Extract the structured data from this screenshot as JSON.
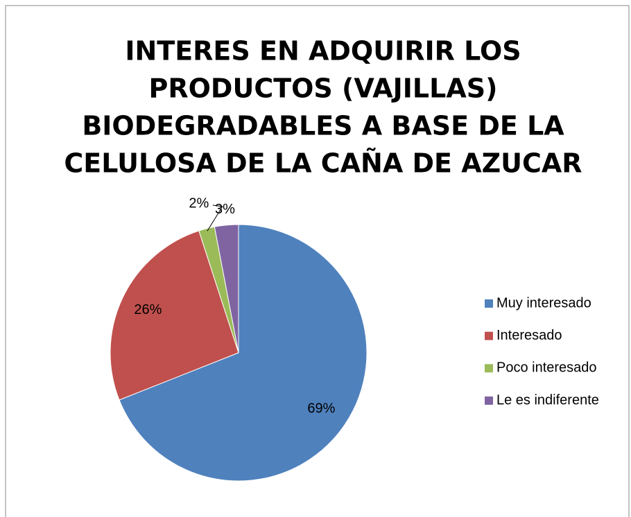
{
  "chart_data": {
    "type": "pie",
    "title": [
      "INTERES EN ADQUIRIR LOS",
      "PRODUCTOS (VAJILLAS)",
      "BIODEGRADABLES A BASE DE LA",
      "CELULOSA DE LA CAÑA DE AZUCAR"
    ],
    "categories": [
      "Muy interesado",
      "Interesado",
      "Poco interesado",
      "Le es indiferente"
    ],
    "values": [
      69,
      26,
      2,
      3
    ],
    "value_labels": [
      "69%",
      "26%",
      "2%",
      "3%"
    ],
    "colors": [
      "#4f81bd",
      "#c0504d",
      "#9bbb59",
      "#8064a2"
    ],
    "legend": "right"
  }
}
